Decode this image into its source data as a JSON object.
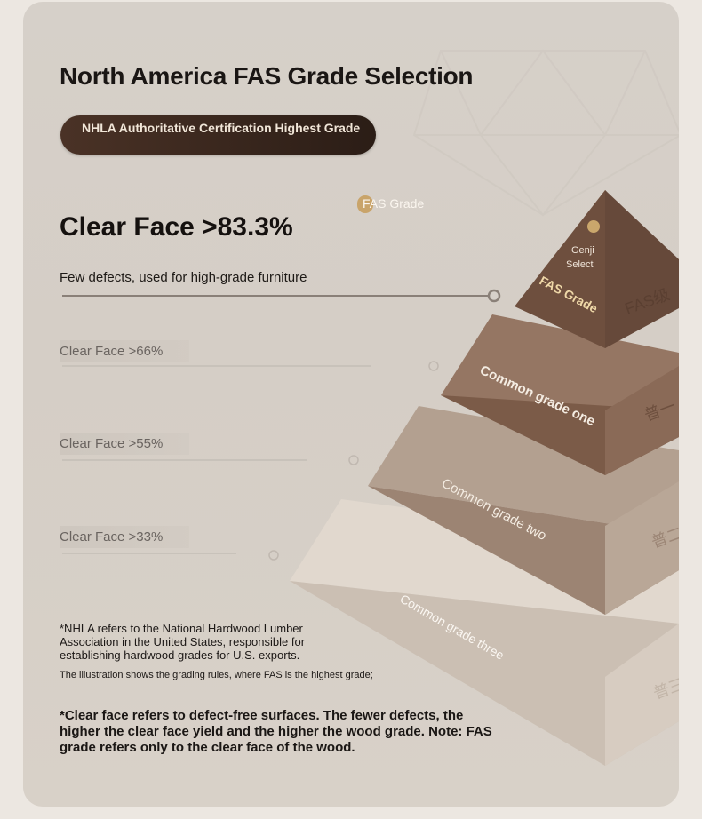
{
  "title": "North America FAS Grade Selection",
  "badge": "NHLA Authoritative Certification Highest Grade",
  "fas_tag": "FAS Grade",
  "headline_value": "Clear Face >83.3%",
  "headline_desc": "Few defects, used for high-grade furniture",
  "levels": [
    {
      "label": "Clear Face >66%"
    },
    {
      "label": "Clear Face >55%"
    },
    {
      "label": "Clear Face >33%"
    }
  ],
  "pyramid": {
    "top_seal": "Genji Select",
    "top_label": "FAS Grade",
    "top_side_label": "FAS级",
    "tier1_label": "Common grade one",
    "tier1_side": "普一",
    "tier2_label": "Common grade two",
    "tier2_side": "普二",
    "tier3_label": "Common grade three",
    "tier3_side": "普三"
  },
  "notes": {
    "nhla": "*NHLA refers to the National Hardwood Lumber Association in the United States, responsible for establishing hardwood grades for U.S. exports.",
    "illustration": "The illustration shows the grading rules, where FAS is the highest grade;",
    "clear_face": "*Clear face refers to defect-free surfaces. The fewer defects, the higher the clear face yield and the higher the wood grade. Note: FAS grade refers only to the clear face of the wood."
  },
  "colors": {
    "tier_top": "#6e4f3e",
    "tier1": "#7a5a47",
    "tier2": "#9a8170",
    "tier3": "#c8bcb0",
    "badge": "#3a271e"
  }
}
